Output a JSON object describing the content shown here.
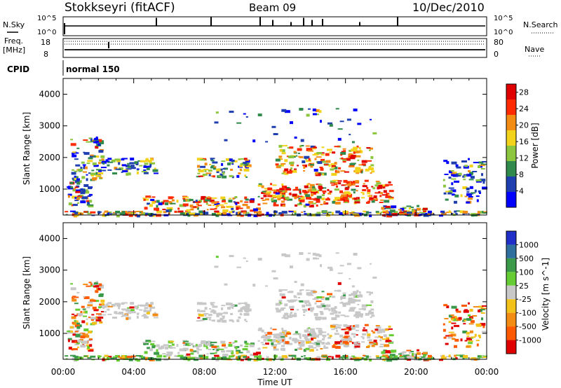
{
  "header": {
    "station": "Stokkseyri (fitACF)",
    "beam": "Beam 09",
    "date": "10/Dec/2010"
  },
  "top_panels": {
    "nsky_label": "N.Sky",
    "nsky_ticks": [
      "10^5",
      "10^0"
    ],
    "nsearch_label": "N.Search",
    "nsearch_ticks": [
      "10^5",
      "10^0"
    ],
    "freq_label_1": "Freq.",
    "freq_label_2": "[MHz]",
    "freq_ticks": [
      "18",
      "8"
    ],
    "nave_label": "Nave",
    "nave_ticks": [
      "80",
      "0"
    ],
    "cpid_label": "CPID",
    "cpid_value": "normal 150"
  },
  "chart_data": [
    {
      "type": "heatmap",
      "name": "power",
      "xlabel": "Time UT",
      "ylabel": "Slant Range [km]",
      "x_ticks": [
        "00:00",
        "04:00",
        "08:00",
        "12:00",
        "16:00",
        "20:00",
        "00:00"
      ],
      "y_ticks": [
        "1000",
        "2000",
        "3000",
        "4000"
      ],
      "xlim_hours": [
        0,
        24
      ],
      "ylim_km": [
        180,
        4500
      ],
      "colorbar_label": "Power [dB]",
      "colorbar_ticks": [
        "4",
        "8",
        "12",
        "16",
        "20",
        "24",
        "28"
      ],
      "colorbar_range": [
        0,
        30
      ],
      "colors": [
        "#0000ff",
        "#1f3fb0",
        "#2f8a4c",
        "#8cc63f",
        "#f2d21a",
        "#f28c14",
        "#ff2a00",
        "#e00000"
      ]
    },
    {
      "type": "heatmap",
      "name": "velocity",
      "xlabel": "Time UT",
      "ylabel": "Slant Range [km]",
      "x_ticks": [
        "00:00",
        "04:00",
        "08:00",
        "12:00",
        "16:00",
        "20:00",
        "00:00"
      ],
      "y_ticks": [
        "1000",
        "2000",
        "3000",
        "4000"
      ],
      "xlim_hours": [
        0,
        24
      ],
      "ylim_km": [
        180,
        4500
      ],
      "colorbar_label": "Velocity [m s^-1]",
      "colorbar_ticks": [
        "1000",
        "500",
        "100",
        "25",
        "-25",
        "-100",
        "-500",
        "-1000"
      ],
      "colors": [
        "#1f2fc8",
        "#2f6fa0",
        "#3a9a4a",
        "#66cc33",
        "#c8c8c8",
        "#f2c21a",
        "#f28c14",
        "#ff5a00",
        "#e00000"
      ]
    }
  ],
  "styling": {
    "axis_color": "#000000",
    "gray_ground": "#c8c8c8"
  }
}
